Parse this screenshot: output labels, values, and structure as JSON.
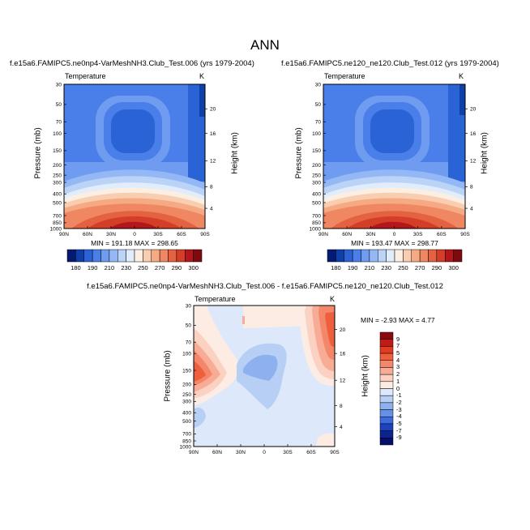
{
  "page_title": "ANN",
  "chart_data": [
    {
      "type": "heatmap",
      "title": "f.e15a6.FAMIPC5.ne0np4-VarMeshNH3.Club_Test.006 (yrs 1979-2004)",
      "variable": "Temperature",
      "units": "K",
      "ylabel": "Pressure (mb)",
      "ylabel_right": "Height (km)",
      "x_ticks": [
        "90N",
        "60N",
        "30N",
        "0",
        "30S",
        "60S",
        "90S"
      ],
      "y_ticks": [
        "30",
        "50",
        "70",
        "100",
        "150",
        "200",
        "250",
        "300",
        "400",
        "500",
        "700",
        "850",
        "1000"
      ],
      "height_ticks": [
        "20",
        "16",
        "12",
        "8",
        "4"
      ],
      "stats": "MIN = 191.18  MAX = 298.65",
      "min": 191.18,
      "max": 298.65,
      "colorbar_labels": [
        "180",
        "190",
        "210",
        "230",
        "250",
        "270",
        "290",
        "300"
      ],
      "colorbar_colors": [
        "#051b73",
        "#0f3fa8",
        "#2a63d6",
        "#4a7ee8",
        "#6f9bf0",
        "#94b7f5",
        "#bcd3f8",
        "#e2edfb",
        "#fcefe2",
        "#f8cdb0",
        "#f5aa84",
        "#ef8762",
        "#e4623f",
        "#d43d28",
        "#b3161b",
        "#7e0a10"
      ]
    },
    {
      "type": "heatmap",
      "title": "f.e15a6.FAMIPC5.ne120_ne120.Club_Test.012 (yrs 1979-2004)",
      "variable": "Temperature",
      "units": "K",
      "ylabel": "Pressure (mb)",
      "ylabel_right": "Height (km)",
      "x_ticks": [
        "90N",
        "60N",
        "30N",
        "0",
        "30S",
        "60S",
        "90S"
      ],
      "y_ticks": [
        "30",
        "50",
        "70",
        "100",
        "150",
        "200",
        "250",
        "300",
        "400",
        "500",
        "700",
        "850",
        "1000"
      ],
      "height_ticks": [
        "20",
        "16",
        "12",
        "8",
        "4"
      ],
      "stats": "MIN = 193.47  MAX = 298.77",
      "min": 193.47,
      "max": 298.77,
      "colorbar_labels": [
        "180",
        "190",
        "210",
        "230",
        "250",
        "270",
        "290",
        "300"
      ],
      "colorbar_colors": [
        "#051b73",
        "#0f3fa8",
        "#2a63d6",
        "#4a7ee8",
        "#6f9bf0",
        "#94b7f5",
        "#bcd3f8",
        "#e2edfb",
        "#fcefe2",
        "#f8cdb0",
        "#f5aa84",
        "#ef8762",
        "#e4623f",
        "#d43d28",
        "#b3161b",
        "#7e0a10"
      ]
    },
    {
      "type": "heatmap",
      "title": "f.e15a6.FAMIPC5.ne0np4-VarMeshNH3.Club_Test.006 - f.e15a6.FAMIPC5.ne120_ne120.Club_Test.012",
      "variable": "Temperature",
      "units": "K",
      "ylabel": "Pressure (mb)",
      "ylabel_right": "Height (km)",
      "x_ticks": [
        "90N",
        "60N",
        "30N",
        "0",
        "30S",
        "60S",
        "90S"
      ],
      "y_ticks": [
        "30",
        "50",
        "70",
        "100",
        "150",
        "200",
        "250",
        "300",
        "400",
        "500",
        "700",
        "850",
        "1000"
      ],
      "height_ticks": [
        "20",
        "16",
        "12",
        "8",
        "4"
      ],
      "stats": "MIN = -2.93  MAX =  4.77",
      "min": -2.93,
      "max": 4.77,
      "colorbar_labels": [
        "9",
        "7",
        "5",
        "4",
        "3",
        "2",
        "1",
        "0",
        "-1",
        "-2",
        "-3",
        "-4",
        "-5",
        "-7",
        "-9"
      ],
      "colorbar_colors": [
        "#8b0a0e",
        "#c41a16",
        "#e23b22",
        "#ef5f3d",
        "#f4866a",
        "#f8ac95",
        "#fbd2c2",
        "#fdece4",
        "#dde9fb",
        "#b7cff5",
        "#8db1ef",
        "#6590e6",
        "#3b6bdc",
        "#1d42c0",
        "#0b2490",
        "#050e6a"
      ]
    }
  ]
}
